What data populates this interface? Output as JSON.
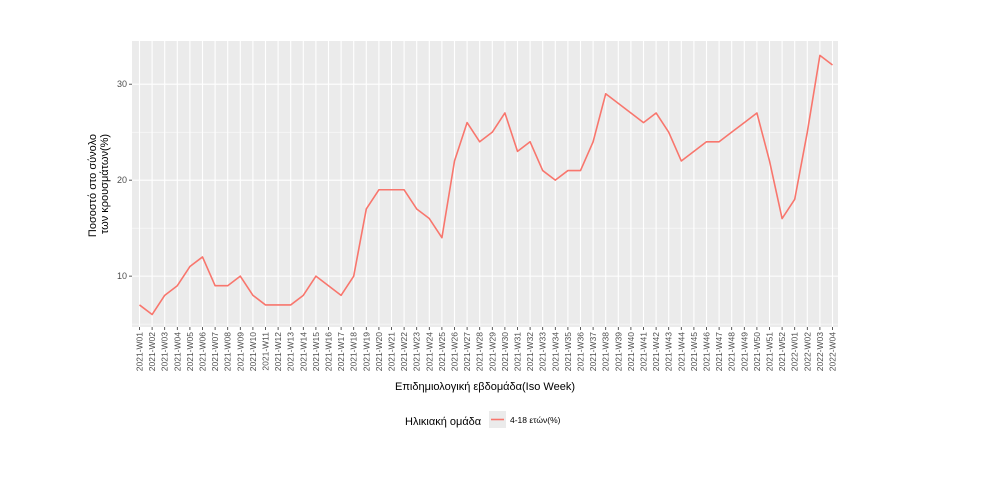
{
  "chart_data": {
    "type": "line",
    "title": "",
    "xlabel": "Επιδημιολογική εβδομάδα(Iso Week)",
    "ylabel_lines": [
      "Ποσοστό στο σύνολο",
      "των κρουσμάτων(%)"
    ],
    "ylim": [
      4.7,
      34.5
    ],
    "yticks": [
      10,
      20,
      30
    ],
    "grid": true,
    "legend_position": "bottom",
    "legend_title": "Ηλικιακή ομάδα",
    "categories": [
      "2021-W01",
      "2021-W02",
      "2021-W03",
      "2021-W04",
      "2021-W05",
      "2021-W06",
      "2021-W07",
      "2021-W08",
      "2021-W09",
      "2021-W10",
      "2021-W11",
      "2021-W12",
      "2021-W13",
      "2021-W14",
      "2021-W15",
      "2021-W16",
      "2021-W17",
      "2021-W18",
      "2021-W19",
      "2021-W20",
      "2021-W21",
      "2021-W22",
      "2021-W23",
      "2021-W24",
      "2021-W25",
      "2021-W26",
      "2021-W27",
      "2021-W28",
      "2021-W29",
      "2021-W30",
      "2021-W31",
      "2021-W32",
      "2021-W33",
      "2021-W34",
      "2021-W35",
      "2021-W36",
      "2021-W37",
      "2021-W38",
      "2021-W39",
      "2021-W40",
      "2021-W41",
      "2021-W42",
      "2021-W43",
      "2021-W44",
      "2021-W45",
      "2021-W46",
      "2021-W47",
      "2021-W48",
      "2021-W49",
      "2021-W50",
      "2021-W51",
      "2021-W52",
      "2022-W01",
      "2022-W02",
      "2022-W03",
      "2022-W04"
    ],
    "series": [
      {
        "name": "4-18 ετών(%)",
        "color": "#F8766D",
        "values": [
          7,
          6,
          8,
          9,
          11,
          12,
          9,
          9,
          10,
          8,
          7,
          7,
          7,
          8,
          10,
          9,
          8,
          10,
          17,
          19,
          19,
          19,
          17,
          16,
          14,
          22,
          26,
          24,
          25,
          27,
          23,
          24,
          21,
          20,
          21,
          21,
          24,
          29,
          28,
          27,
          26,
          27,
          25,
          22,
          23,
          24,
          24,
          25,
          26,
          27,
          22,
          16,
          18,
          25,
          33,
          32
        ]
      }
    ]
  }
}
